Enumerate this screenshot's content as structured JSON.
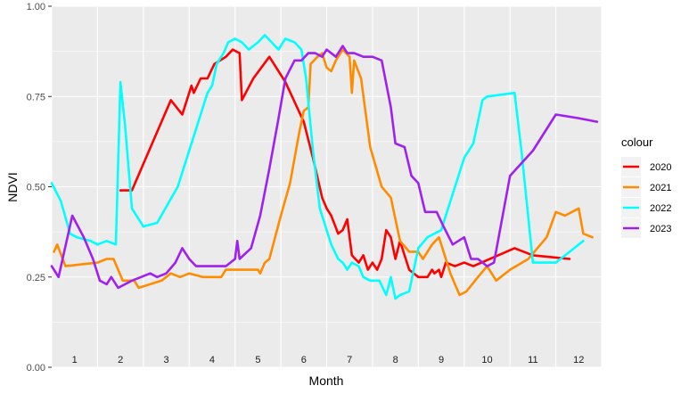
{
  "chart_data": {
    "type": "line",
    "xlabel": "Month",
    "ylabel": "NDVI",
    "ylim": [
      0,
      1
    ],
    "xlim": [
      0,
      12
    ],
    "yticks": [
      "0.00",
      "0.25",
      "0.50",
      "0.75",
      "1.00"
    ],
    "month_labels": [
      "1",
      "2",
      "3",
      "4",
      "5",
      "6",
      "7",
      "8",
      "9",
      "10",
      "11",
      "12"
    ],
    "background": "#EBEBEB",
    "grid": true,
    "legend": {
      "title": "colour",
      "position": "right"
    },
    "series": [
      {
        "name": "2020",
        "color": "#FF0000",
        "points": [
          [
            1.5,
            0.49
          ],
          [
            1.75,
            0.49
          ],
          [
            2.6,
            0.74
          ],
          [
            2.85,
            0.7
          ],
          [
            3.05,
            0.78
          ],
          [
            3.1,
            0.76
          ],
          [
            3.25,
            0.8
          ],
          [
            3.4,
            0.8
          ],
          [
            3.55,
            0.84
          ],
          [
            3.8,
            0.86
          ],
          [
            3.95,
            0.88
          ],
          [
            4.1,
            0.87
          ],
          [
            4.15,
            0.74
          ],
          [
            4.4,
            0.8
          ],
          [
            4.75,
            0.86
          ],
          [
            5.1,
            0.79
          ],
          [
            5.5,
            0.68
          ],
          [
            5.7,
            0.58
          ],
          [
            5.9,
            0.47
          ],
          [
            6.0,
            0.44
          ],
          [
            6.1,
            0.42
          ],
          [
            6.25,
            0.37
          ],
          [
            6.35,
            0.38
          ],
          [
            6.45,
            0.41
          ],
          [
            6.55,
            0.31
          ],
          [
            6.7,
            0.29
          ],
          [
            6.8,
            0.31
          ],
          [
            6.9,
            0.27
          ],
          [
            7.0,
            0.29
          ],
          [
            7.1,
            0.27
          ],
          [
            7.2,
            0.3
          ],
          [
            7.3,
            0.38
          ],
          [
            7.4,
            0.36
          ],
          [
            7.5,
            0.3
          ],
          [
            7.6,
            0.35
          ],
          [
            7.7,
            0.31
          ],
          [
            7.8,
            0.27
          ],
          [
            8.0,
            0.25
          ],
          [
            8.2,
            0.25
          ],
          [
            8.3,
            0.27
          ],
          [
            8.35,
            0.26
          ],
          [
            8.45,
            0.27
          ],
          [
            8.5,
            0.25
          ],
          [
            8.6,
            0.29
          ],
          [
            8.8,
            0.28
          ],
          [
            9.0,
            0.29
          ],
          [
            9.2,
            0.28
          ],
          [
            10.1,
            0.33
          ],
          [
            10.5,
            0.31
          ],
          [
            11.3,
            0.3
          ]
        ]
      },
      {
        "name": "2021",
        "color": "#FF8C00",
        "points": [
          [
            0.05,
            0.32
          ],
          [
            0.12,
            0.34
          ],
          [
            0.3,
            0.28
          ],
          [
            1.0,
            0.29
          ],
          [
            1.2,
            0.3
          ],
          [
            1.35,
            0.3
          ],
          [
            1.55,
            0.24
          ],
          [
            1.8,
            0.24
          ],
          [
            1.9,
            0.22
          ],
          [
            2.4,
            0.24
          ],
          [
            2.6,
            0.26
          ],
          [
            2.8,
            0.25
          ],
          [
            3.0,
            0.26
          ],
          [
            3.3,
            0.25
          ],
          [
            3.5,
            0.25
          ],
          [
            3.7,
            0.25
          ],
          [
            3.8,
            0.27
          ],
          [
            3.9,
            0.27
          ],
          [
            4.2,
            0.27
          ],
          [
            4.4,
            0.27
          ],
          [
            4.5,
            0.27
          ],
          [
            4.55,
            0.26
          ],
          [
            4.65,
            0.29
          ],
          [
            4.75,
            0.3
          ],
          [
            5.0,
            0.42
          ],
          [
            5.2,
            0.51
          ],
          [
            5.4,
            0.65
          ],
          [
            5.5,
            0.71
          ],
          [
            5.6,
            0.72
          ],
          [
            5.65,
            0.84
          ],
          [
            5.8,
            0.86
          ],
          [
            5.9,
            0.87
          ],
          [
            6.0,
            0.83
          ],
          [
            6.1,
            0.82
          ],
          [
            6.2,
            0.85
          ],
          [
            6.35,
            0.88
          ],
          [
            6.5,
            0.86
          ],
          [
            6.55,
            0.76
          ],
          [
            6.6,
            0.85
          ],
          [
            6.75,
            0.8
          ],
          [
            6.95,
            0.61
          ],
          [
            7.2,
            0.5
          ],
          [
            7.4,
            0.47
          ],
          [
            7.6,
            0.35
          ],
          [
            7.8,
            0.32
          ],
          [
            8.0,
            0.32
          ],
          [
            8.1,
            0.3
          ],
          [
            8.3,
            0.34
          ],
          [
            8.45,
            0.36
          ],
          [
            8.7,
            0.26
          ],
          [
            8.9,
            0.2
          ],
          [
            9.05,
            0.21
          ],
          [
            9.3,
            0.25
          ],
          [
            9.5,
            0.28
          ],
          [
            9.7,
            0.24
          ],
          [
            10.0,
            0.27
          ],
          [
            10.4,
            0.3
          ],
          [
            10.8,
            0.36
          ],
          [
            11.0,
            0.43
          ],
          [
            11.2,
            0.42
          ],
          [
            11.5,
            0.44
          ],
          [
            11.6,
            0.37
          ],
          [
            11.8,
            0.36
          ]
        ]
      },
      {
        "name": "2022",
        "color": "#00FFFF",
        "points": [
          [
            0.0,
            0.51
          ],
          [
            0.2,
            0.46
          ],
          [
            0.4,
            0.37
          ],
          [
            0.55,
            0.36
          ],
          [
            0.85,
            0.35
          ],
          [
            1.0,
            0.34
          ],
          [
            1.2,
            0.35
          ],
          [
            1.4,
            0.34
          ],
          [
            1.5,
            0.79
          ],
          [
            1.6,
            0.67
          ],
          [
            1.75,
            0.44
          ],
          [
            2.0,
            0.39
          ],
          [
            2.3,
            0.4
          ],
          [
            2.75,
            0.5
          ],
          [
            3.1,
            0.64
          ],
          [
            3.4,
            0.76
          ],
          [
            3.5,
            0.78
          ],
          [
            3.6,
            0.84
          ],
          [
            3.75,
            0.87
          ],
          [
            3.85,
            0.9
          ],
          [
            4.0,
            0.91
          ],
          [
            4.15,
            0.9
          ],
          [
            4.3,
            0.88
          ],
          [
            4.5,
            0.9
          ],
          [
            4.65,
            0.92
          ],
          [
            4.8,
            0.9
          ],
          [
            4.95,
            0.88
          ],
          [
            5.1,
            0.91
          ],
          [
            5.3,
            0.9
          ],
          [
            5.45,
            0.88
          ],
          [
            5.55,
            0.8
          ],
          [
            5.7,
            0.6
          ],
          [
            5.85,
            0.44
          ],
          [
            5.95,
            0.4
          ],
          [
            6.1,
            0.34
          ],
          [
            6.25,
            0.3
          ],
          [
            6.35,
            0.29
          ],
          [
            6.45,
            0.27
          ],
          [
            6.55,
            0.29
          ],
          [
            6.7,
            0.28
          ],
          [
            6.8,
            0.25
          ],
          [
            6.95,
            0.24
          ],
          [
            7.15,
            0.24
          ],
          [
            7.3,
            0.2
          ],
          [
            7.4,
            0.25
          ],
          [
            7.5,
            0.19
          ],
          [
            7.6,
            0.2
          ],
          [
            7.8,
            0.21
          ],
          [
            8.0,
            0.33
          ],
          [
            8.2,
            0.36
          ],
          [
            8.5,
            0.38
          ],
          [
            9.0,
            0.58
          ],
          [
            9.2,
            0.62
          ],
          [
            9.4,
            0.74
          ],
          [
            9.5,
            0.75
          ],
          [
            10.1,
            0.76
          ],
          [
            10.25,
            0.6
          ],
          [
            10.5,
            0.29
          ],
          [
            11.0,
            0.29
          ],
          [
            11.4,
            0.33
          ],
          [
            11.6,
            0.35
          ]
        ]
      },
      {
        "name": "2023",
        "color": "#A020F0",
        "points": [
          [
            0.0,
            0.28
          ],
          [
            0.1,
            0.26
          ],
          [
            0.15,
            0.25
          ],
          [
            0.45,
            0.42
          ],
          [
            0.7,
            0.36
          ],
          [
            0.9,
            0.3
          ],
          [
            1.05,
            0.24
          ],
          [
            1.2,
            0.23
          ],
          [
            1.3,
            0.25
          ],
          [
            1.45,
            0.22
          ],
          [
            1.6,
            0.23
          ],
          [
            1.75,
            0.24
          ],
          [
            1.95,
            0.25
          ],
          [
            2.15,
            0.26
          ],
          [
            2.3,
            0.25
          ],
          [
            2.5,
            0.26
          ],
          [
            2.7,
            0.29
          ],
          [
            2.85,
            0.33
          ],
          [
            3.0,
            0.3
          ],
          [
            3.15,
            0.28
          ],
          [
            3.4,
            0.28
          ],
          [
            3.8,
            0.28
          ],
          [
            4.0,
            0.3
          ],
          [
            4.05,
            0.35
          ],
          [
            4.1,
            0.3
          ],
          [
            4.35,
            0.33
          ],
          [
            4.55,
            0.42
          ],
          [
            4.75,
            0.55
          ],
          [
            4.95,
            0.69
          ],
          [
            5.1,
            0.8
          ],
          [
            5.3,
            0.85
          ],
          [
            5.45,
            0.85
          ],
          [
            5.6,
            0.87
          ],
          [
            5.75,
            0.87
          ],
          [
            5.9,
            0.86
          ],
          [
            6.0,
            0.88
          ],
          [
            6.2,
            0.86
          ],
          [
            6.35,
            0.89
          ],
          [
            6.45,
            0.87
          ],
          [
            6.6,
            0.87
          ],
          [
            6.8,
            0.86
          ],
          [
            7.0,
            0.86
          ],
          [
            7.2,
            0.85
          ],
          [
            7.4,
            0.72
          ],
          [
            7.5,
            0.62
          ],
          [
            7.7,
            0.61
          ],
          [
            7.85,
            0.53
          ],
          [
            8.0,
            0.51
          ],
          [
            8.15,
            0.43
          ],
          [
            8.4,
            0.43
          ],
          [
            8.55,
            0.39
          ],
          [
            8.75,
            0.34
          ],
          [
            9.0,
            0.36
          ],
          [
            9.15,
            0.3
          ],
          [
            9.3,
            0.3
          ],
          [
            9.5,
            0.28
          ],
          [
            9.65,
            0.29
          ],
          [
            10.0,
            0.53
          ],
          [
            10.5,
            0.6
          ],
          [
            11.0,
            0.7
          ],
          [
            11.5,
            0.69
          ],
          [
            11.9,
            0.68
          ]
        ]
      }
    ]
  }
}
